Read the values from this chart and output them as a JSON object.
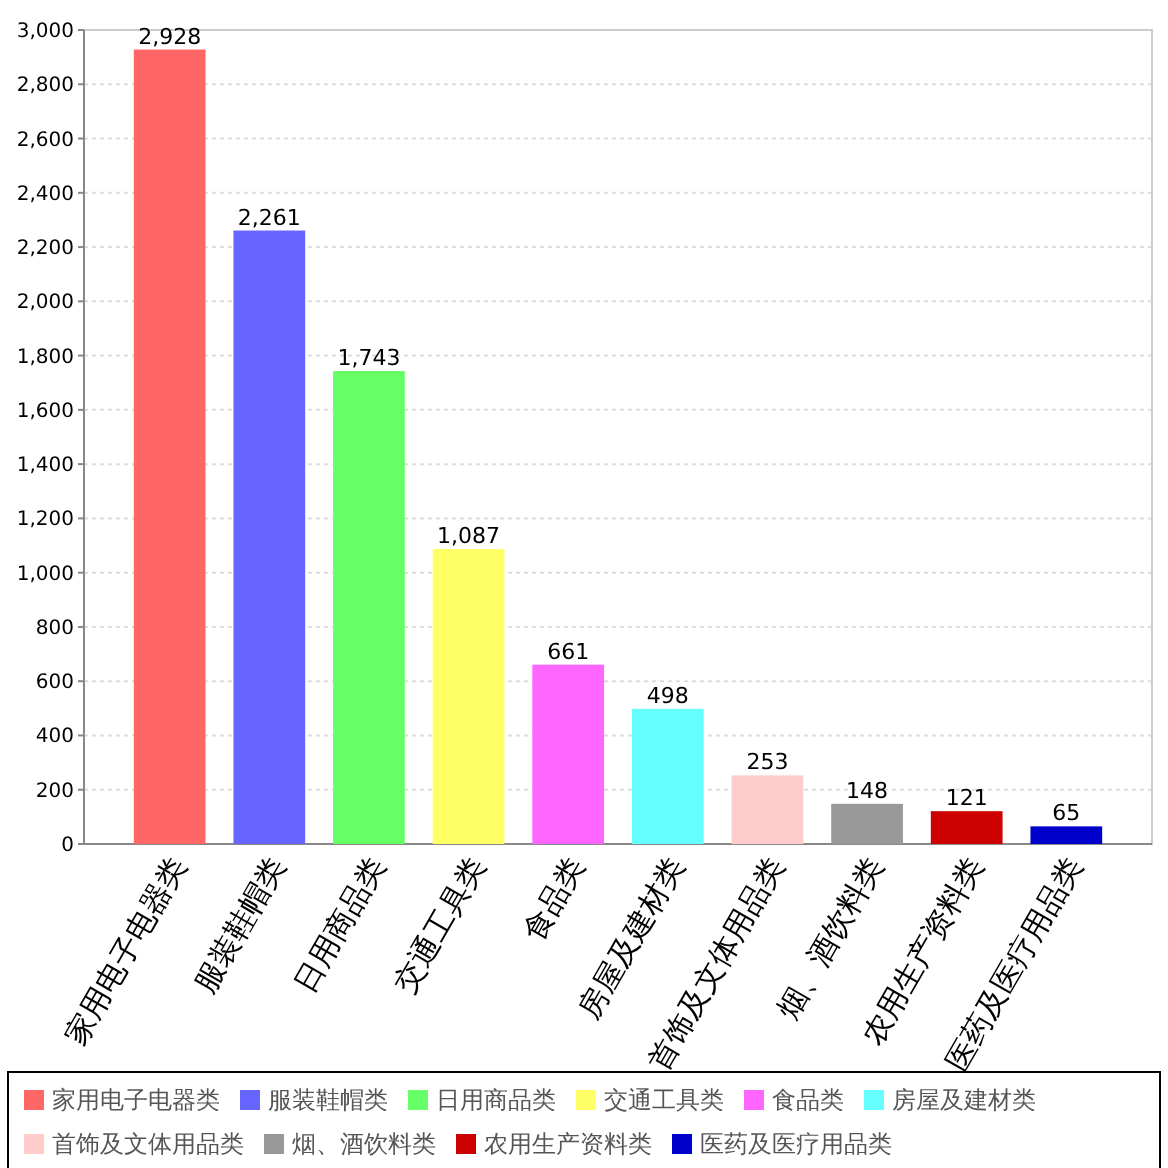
{
  "chart_data": {
    "type": "bar",
    "categories": [
      "家用电子电器类",
      "服装鞋帽类",
      "日用商品类",
      "交通工具类",
      "食品类",
      "房屋及建材类",
      "首饰及文体用品类",
      "烟、酒饮料类",
      "农用生产资料类",
      "医药及医疗用品类"
    ],
    "series": [
      {
        "name": "家用电子电器类",
        "color": "#ff6666",
        "values": [
          2928,
          null,
          null,
          null,
          null,
          null,
          null,
          null,
          null,
          null
        ],
        "value_labels": [
          "2,928",
          null,
          null,
          null,
          null,
          null,
          null,
          null,
          null,
          null
        ]
      },
      {
        "name": "服装鞋帽类",
        "color": "#6666ff",
        "values": [
          null,
          2261,
          null,
          null,
          null,
          null,
          null,
          null,
          null,
          null
        ],
        "value_labels": [
          null,
          "2,261",
          null,
          null,
          null,
          null,
          null,
          null,
          null,
          null
        ]
      },
      {
        "name": "日用商品类",
        "color": "#66ff66",
        "values": [
          null,
          null,
          1743,
          null,
          null,
          null,
          null,
          null,
          null,
          null
        ],
        "value_labels": [
          null,
          null,
          "1,743",
          null,
          null,
          null,
          null,
          null,
          null,
          null
        ]
      },
      {
        "name": "交通工具类",
        "color": "#ffff66",
        "values": [
          null,
          null,
          null,
          1087,
          null,
          null,
          null,
          null,
          null,
          null
        ],
        "value_labels": [
          null,
          null,
          null,
          "1,087",
          null,
          null,
          null,
          null,
          null,
          null
        ]
      },
      {
        "name": "食品类",
        "color": "#ff66ff",
        "values": [
          null,
          null,
          null,
          null,
          661,
          null,
          null,
          null,
          null,
          null
        ],
        "value_labels": [
          null,
          null,
          null,
          null,
          "661",
          null,
          null,
          null,
          null,
          null
        ]
      },
      {
        "name": "房屋及建材类",
        "color": "#66ffff",
        "values": [
          null,
          null,
          null,
          null,
          null,
          498,
          null,
          null,
          null,
          null
        ],
        "value_labels": [
          null,
          null,
          null,
          null,
          null,
          "498",
          null,
          null,
          null,
          null
        ]
      },
      {
        "name": "首饰及文体用品类",
        "color": "#ffcccc",
        "values": [
          null,
          null,
          null,
          null,
          null,
          null,
          253,
          null,
          null,
          null
        ],
        "value_labels": [
          null,
          null,
          null,
          null,
          null,
          null,
          "253",
          null,
          null,
          null
        ]
      },
      {
        "name": "烟、酒饮料类",
        "color": "#999999",
        "values": [
          null,
          null,
          null,
          null,
          null,
          null,
          null,
          148,
          null,
          null
        ],
        "value_labels": [
          null,
          null,
          null,
          null,
          null,
          null,
          null,
          "148",
          null,
          null
        ]
      },
      {
        "name": "农用生产资料类",
        "color": "#cc0000",
        "values": [
          null,
          null,
          null,
          null,
          null,
          null,
          null,
          null,
          121,
          null
        ],
        "value_labels": [
          null,
          null,
          null,
          null,
          null,
          null,
          null,
          null,
          "121",
          null
        ]
      },
      {
        "name": "医药及医疗用品类",
        "color": "#0000cc",
        "values": [
          null,
          null,
          null,
          null,
          null,
          null,
          null,
          null,
          null,
          65
        ],
        "value_labels": [
          null,
          null,
          null,
          null,
          null,
          null,
          null,
          null,
          null,
          "65"
        ]
      }
    ],
    "ylim": [
      0,
      3000
    ],
    "yticks": [
      0,
      {
        "value": 200,
        "label": "200"
      },
      {
        "value": 400,
        "label": "400"
      },
      {
        "value": 600,
        "label": "600"
      },
      {
        "value": 800,
        "label": "800"
      },
      {
        "value": 1000,
        "label": "1,000"
      },
      {
        "value": 1200,
        "label": "1,200"
      },
      {
        "value": 1400,
        "label": "1,400"
      },
      {
        "value": 1600,
        "label": "1,600"
      },
      {
        "value": 1800,
        "label": "1,800"
      },
      {
        "value": 2000,
        "label": "2,000"
      },
      {
        "value": 2200,
        "label": "2,200"
      },
      {
        "value": 2400,
        "label": "2,400"
      },
      {
        "value": 2600,
        "label": "2,600"
      },
      {
        "value": 2800,
        "label": "2,800"
      },
      {
        "value": 3000,
        "label": "3,000"
      }
    ],
    "grid": "y",
    "legend": "bottom"
  }
}
